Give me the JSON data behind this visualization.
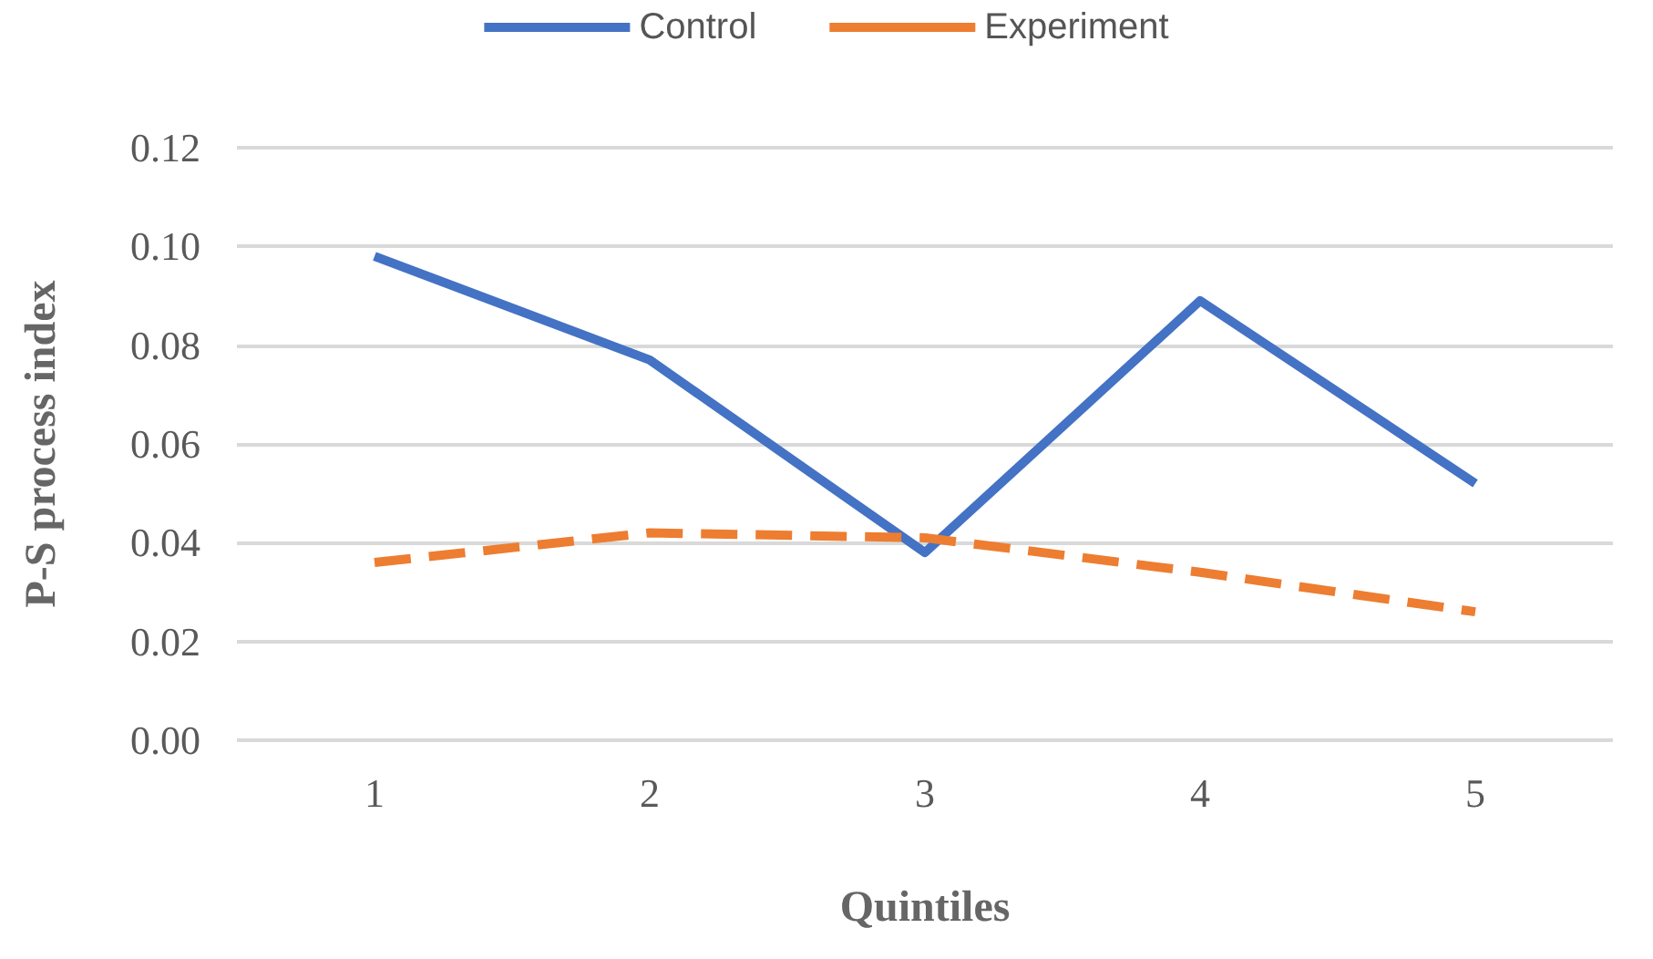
{
  "chart_data": {
    "type": "line",
    "xlabel": "Quintiles",
    "ylabel": "P-S process index",
    "categories": [
      "1",
      "2",
      "3",
      "4",
      "5"
    ],
    "series": [
      {
        "name": "Control",
        "color": "#4472c4",
        "values": [
          0.098,
          0.077,
          0.038,
          0.089,
          0.052
        ],
        "line_style": "solid"
      },
      {
        "name": "Experiment",
        "color": "#ed7d31",
        "values": [
          0.036,
          0.042,
          0.041,
          0.034,
          0.026
        ],
        "line_style": "dashed"
      }
    ],
    "ylim": [
      0,
      0.12
    ],
    "yticks": [
      {
        "value": 0,
        "label": "0.00"
      },
      {
        "value": 0.02,
        "label": "0.02"
      },
      {
        "value": 0.04,
        "label": "0.04"
      },
      {
        "value": 0.06,
        "label": "0.06"
      },
      {
        "value": 0.08,
        "label": "0.08"
      },
      {
        "value": 0.1,
        "label": "0.10"
      },
      {
        "value": 0.12,
        "label": "0.12"
      }
    ],
    "grid": "y",
    "legend": "top",
    "marker": "none"
  }
}
